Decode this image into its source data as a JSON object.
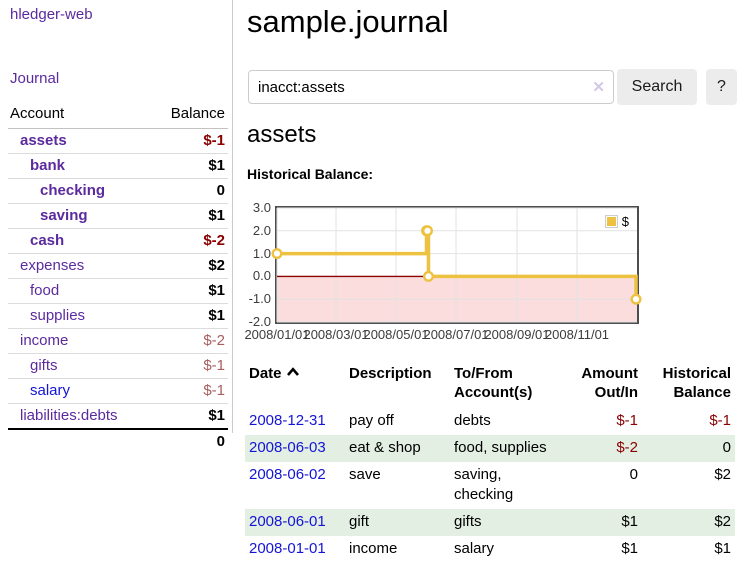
{
  "colors": {
    "purple": "#5b2b9e",
    "link-blue": "#1414d6",
    "neg": "#8b0000",
    "neg-soft": "#a85f5f",
    "row-green": "#e3efe3",
    "divider": "#cccccc"
  },
  "app": {
    "title": "hledger-web"
  },
  "sidebar": {
    "nav": {
      "journal_label": "Journal"
    },
    "accounts_table": {
      "headers": {
        "account": "Account",
        "balance": "Balance"
      },
      "rows": [
        {
          "label": "assets",
          "balance": "$-1",
          "name_class": "lvl1 b",
          "bal_class": "neg"
        },
        {
          "label": "bank",
          "balance": "$1",
          "name_class": "lvl2 b",
          "bal_class": ""
        },
        {
          "label": "checking",
          "balance": "0",
          "name_class": "lvl3 b",
          "bal_class": ""
        },
        {
          "label": "saving",
          "balance": "$1",
          "name_class": "lvl3 b",
          "bal_class": ""
        },
        {
          "label": "cash",
          "balance": "$-2",
          "name_class": "lvl2 b",
          "bal_class": "neg"
        },
        {
          "label": "expenses",
          "balance": "$2",
          "name_class": "lvl1",
          "bal_class": ""
        },
        {
          "label": "food",
          "balance": "$1",
          "name_class": "lvl2",
          "bal_class": ""
        },
        {
          "label": "supplies",
          "balance": "$1",
          "name_class": "lvl2",
          "bal_class": ""
        },
        {
          "label": "income",
          "balance": "$-2",
          "name_class": "lvl1",
          "bal_class": "neg-soft"
        },
        {
          "label": "gifts",
          "balance": "$-1",
          "name_class": "lvl2",
          "bal_class": "neg-soft"
        },
        {
          "label": "salary",
          "balance": "$-1",
          "name_class": "lvl2 blue",
          "bal_class": "neg-soft"
        },
        {
          "label": "liabilities:debts",
          "balance": "$1",
          "name_class": "lvl1",
          "bal_class": ""
        }
      ],
      "total": "0"
    }
  },
  "main": {
    "title": "sample.journal",
    "search": {
      "value": "inacct:assets",
      "clear_icon": "✕",
      "button_label": "Search",
      "help_label": "?"
    },
    "section_title": "assets",
    "chart_label": "Historical Balance:"
  },
  "chart_data": {
    "type": "line",
    "mode": "steps",
    "title": "Historical Balance",
    "series": [
      {
        "name": "$",
        "color": "#edc240",
        "points": [
          [
            "2008-01-01",
            1
          ],
          [
            "2008-06-01",
            2
          ],
          [
            "2008-06-02",
            2
          ],
          [
            "2008-06-03",
            0
          ],
          [
            "2008-12-31",
            -1
          ]
        ]
      }
    ],
    "xlim": [
      "2008-01-01",
      "2009-01-01"
    ],
    "ylim": [
      -2,
      3
    ],
    "x_ticks": [
      "2008/01/01",
      "2008/03/01",
      "2008/05/01",
      "2008/07/01",
      "2008/09/01",
      "2008/11/01"
    ],
    "y_ticks": [
      "3.0",
      "2.0",
      "1.0",
      "0.0",
      "-1.0",
      "-2.0"
    ],
    "grid": true,
    "negative_region_color": "#fbdddd",
    "zero_line_color": "#8b0000",
    "legend": {
      "label": "$",
      "position": "top-right"
    }
  },
  "register_table": {
    "headers": {
      "date": "Date",
      "sort_icon": "chevron-up-icon",
      "description": "Description",
      "accounts": "To/From Account(s)",
      "amount": "Amount Out/In",
      "balance": "Historical Balance"
    },
    "rows": [
      {
        "date": "2008-12-31",
        "description": "pay off",
        "accounts": "debts",
        "amount": "$-1",
        "amount_class": "neg",
        "balance": "$-1",
        "balance_class": "neg"
      },
      {
        "date": "2008-06-03",
        "description": "eat & shop",
        "accounts": "food, supplies",
        "amount": "$-2",
        "amount_class": "neg",
        "balance": "0",
        "balance_class": ""
      },
      {
        "date": "2008-06-02",
        "description": "save",
        "accounts": "saving,\nchecking",
        "amount": "0",
        "amount_class": "",
        "balance": "$2",
        "balance_class": ""
      },
      {
        "date": "2008-06-01",
        "description": "gift",
        "accounts": "gifts",
        "amount": "$1",
        "amount_class": "",
        "balance": "$2",
        "balance_class": ""
      },
      {
        "date": "2008-01-01",
        "description": "income",
        "accounts": "salary",
        "amount": "$1",
        "amount_class": "",
        "balance": "$1",
        "balance_class": ""
      }
    ]
  }
}
